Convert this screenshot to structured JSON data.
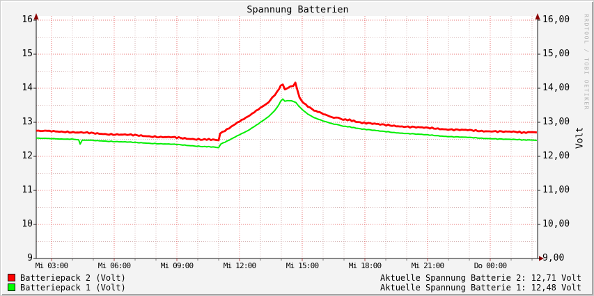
{
  "title": "Spannung Batterien",
  "watermark": "RRDTOOL / TOBI OETIKER",
  "y_axis": {
    "unit_label": "Volt",
    "ticks": [
      {
        "v": 16,
        "left": "16",
        "right": "16,00"
      },
      {
        "v": 15,
        "left": "15",
        "right": "15,00"
      },
      {
        "v": 14,
        "left": "14",
        "right": "14,00"
      },
      {
        "v": 13,
        "left": "13",
        "right": "13,00"
      },
      {
        "v": 12,
        "left": "12",
        "right": "12,00"
      },
      {
        "v": 11,
        "left": "11",
        "right": "11,00"
      },
      {
        "v": 10,
        "left": "10",
        "right": "10,00"
      },
      {
        "v": 9,
        "left": "9",
        "right": "9,00"
      }
    ]
  },
  "x_axis": {
    "ticks": [
      {
        "t": 3,
        "label": "Mi 03:00"
      },
      {
        "t": 6,
        "label": "Mi 06:00"
      },
      {
        "t": 9,
        "label": "Mi 09:00"
      },
      {
        "t": 12,
        "label": "Mi 12:00"
      },
      {
        "t": 15,
        "label": "Mi 15:00"
      },
      {
        "t": 18,
        "label": "Mi 18:00"
      },
      {
        "t": 21,
        "label": "Mi 21:00"
      },
      {
        "t": 24,
        "label": "Do 00:00"
      }
    ]
  },
  "legend": [
    {
      "label": "Batteriepack 2 (Volt)",
      "color": "#ff0000",
      "value_text": "Aktuelle Spannung Batterie 2: 12,71 Volt"
    },
    {
      "label": "Batteriepack 1 (Volt)",
      "color": "#00ff00",
      "value_text": "Aktuelle Spannung Batterie 1: 12,48 Volt"
    }
  ],
  "colors": {
    "canvas": "#ffffff",
    "axis": "#1a1a1a",
    "arrow": "#8b0000",
    "grid_major": "#e65c5c",
    "grid_minor": "#d6b4b4",
    "series_red": "#ff0000",
    "series_green": "#00ee00"
  },
  "chart_data": {
    "type": "line",
    "title": "Spannung Batterien",
    "ylabel": "Volt",
    "ylim": [
      9,
      16
    ],
    "y_major_step": 1,
    "y_minor_step": 0.5,
    "x_hours_range": [
      2.27,
      26.27
    ],
    "x_minor_step_hours": 1,
    "x_major_step_hours": 3,
    "grid": true,
    "legend_position": "bottom",
    "series": [
      {
        "name": "Batteriepack 2 (Volt)",
        "color": "#ff0000",
        "width": 2.8,
        "noise": 0.016,
        "points": [
          [
            2.27,
            12.76
          ],
          [
            2.9,
            12.74
          ],
          [
            3.57,
            12.73
          ],
          [
            4.23,
            12.7
          ],
          [
            4.9,
            12.68
          ],
          [
            5.57,
            12.66
          ],
          [
            6.23,
            12.64
          ],
          [
            6.9,
            12.62
          ],
          [
            7.57,
            12.6
          ],
          [
            8.23,
            12.57
          ],
          [
            8.9,
            12.55
          ],
          [
            9.57,
            12.52
          ],
          [
            10.23,
            12.5
          ],
          [
            10.73,
            12.48
          ],
          [
            11.0,
            12.46
          ],
          [
            11.07,
            12.66
          ],
          [
            11.4,
            12.8
          ],
          [
            11.9,
            12.98
          ],
          [
            12.4,
            13.18
          ],
          [
            12.9,
            13.37
          ],
          [
            13.3,
            13.55
          ],
          [
            13.57,
            13.72
          ],
          [
            13.8,
            13.9
          ],
          [
            13.97,
            14.08
          ],
          [
            14.07,
            14.1
          ],
          [
            14.17,
            13.97
          ],
          [
            14.3,
            14.01
          ],
          [
            14.43,
            14.04
          ],
          [
            14.57,
            14.08
          ],
          [
            14.67,
            14.17
          ],
          [
            14.77,
            13.95
          ],
          [
            14.87,
            13.75
          ],
          [
            15.0,
            13.6
          ],
          [
            15.17,
            13.5
          ],
          [
            15.37,
            13.42
          ],
          [
            15.57,
            13.35
          ],
          [
            15.83,
            13.28
          ],
          [
            16.1,
            13.22
          ],
          [
            16.4,
            13.16
          ],
          [
            16.73,
            13.12
          ],
          [
            17.07,
            13.08
          ],
          [
            17.57,
            13.02
          ],
          [
            18.07,
            12.98
          ],
          [
            18.73,
            12.93
          ],
          [
            19.4,
            12.9
          ],
          [
            20.07,
            12.87
          ],
          [
            20.73,
            12.84
          ],
          [
            21.4,
            12.82
          ],
          [
            22.07,
            12.79
          ],
          [
            22.73,
            12.77
          ],
          [
            23.4,
            12.75
          ],
          [
            24.07,
            12.74
          ],
          [
            24.73,
            12.72
          ],
          [
            25.4,
            12.71
          ],
          [
            26.23,
            12.7
          ]
        ]
      },
      {
        "name": "Batteriepack 1 (Volt)",
        "color": "#00ee00",
        "width": 2.0,
        "noise": 0.007,
        "points": [
          [
            2.27,
            12.54
          ],
          [
            2.9,
            12.52
          ],
          [
            3.57,
            12.51
          ],
          [
            4.07,
            12.5
          ],
          [
            4.3,
            12.49
          ],
          [
            4.37,
            12.36
          ],
          [
            4.47,
            12.48
          ],
          [
            4.9,
            12.47
          ],
          [
            5.57,
            12.45
          ],
          [
            6.23,
            12.43
          ],
          [
            6.9,
            12.41
          ],
          [
            7.57,
            12.39
          ],
          [
            8.23,
            12.37
          ],
          [
            8.9,
            12.35
          ],
          [
            9.57,
            12.32
          ],
          [
            10.23,
            12.29
          ],
          [
            10.73,
            12.27
          ],
          [
            11.0,
            12.25
          ],
          [
            11.1,
            12.36
          ],
          [
            11.4,
            12.45
          ],
          [
            11.9,
            12.6
          ],
          [
            12.4,
            12.76
          ],
          [
            12.9,
            12.95
          ],
          [
            13.3,
            13.13
          ],
          [
            13.57,
            13.27
          ],
          [
            13.8,
            13.44
          ],
          [
            13.97,
            13.62
          ],
          [
            14.07,
            13.68
          ],
          [
            14.17,
            13.62
          ],
          [
            14.3,
            13.64
          ],
          [
            14.57,
            13.62
          ],
          [
            14.7,
            13.58
          ],
          [
            14.83,
            13.48
          ],
          [
            15.0,
            13.37
          ],
          [
            15.17,
            13.28
          ],
          [
            15.37,
            13.2
          ],
          [
            15.57,
            13.14
          ],
          [
            15.83,
            13.07
          ],
          [
            16.1,
            13.02
          ],
          [
            16.4,
            12.97
          ],
          [
            16.73,
            12.92
          ],
          [
            17.07,
            12.88
          ],
          [
            17.57,
            12.83
          ],
          [
            18.07,
            12.79
          ],
          [
            18.73,
            12.74
          ],
          [
            19.4,
            12.7
          ],
          [
            20.07,
            12.67
          ],
          [
            20.73,
            12.64
          ],
          [
            21.4,
            12.61
          ],
          [
            22.07,
            12.58
          ],
          [
            22.73,
            12.56
          ],
          [
            23.4,
            12.54
          ],
          [
            24.07,
            12.52
          ],
          [
            24.73,
            12.5
          ],
          [
            25.4,
            12.49
          ],
          [
            26.23,
            12.47
          ]
        ]
      }
    ]
  }
}
